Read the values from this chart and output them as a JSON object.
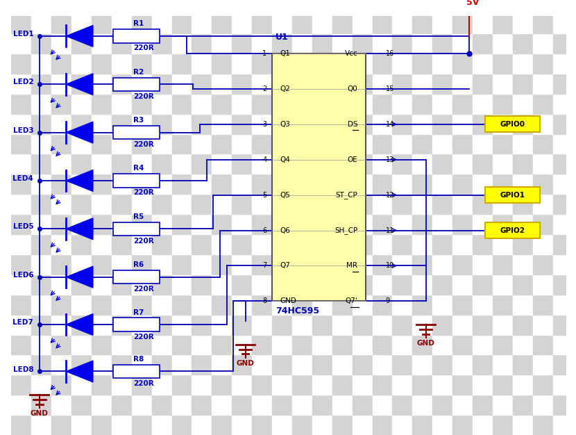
{
  "bg_color1": "#d4d4d4",
  "bg_color2": "#ffffff",
  "wire_color": "#0000bb",
  "wire_lw": 1.3,
  "led_color": "#0000ee",
  "res_color": "#0000bb",
  "chip_fill": "#ffffaa",
  "chip_border": "#555555",
  "label_blue": "#0000bb",
  "gnd_color": "#880000",
  "v5_color": "#cc0000",
  "gpio_bg": "#ffff00",
  "gpio_border": "#ccaa00",
  "leds": [
    "LED1",
    "LED2",
    "LED3",
    "LED4",
    "LED5",
    "LED6",
    "LED7",
    "LED8"
  ],
  "resistors": [
    "R1",
    "R2",
    "R3",
    "R4",
    "R5",
    "R6",
    "R7",
    "R8"
  ],
  "chip_labels_left": [
    "Q1",
    "Q2",
    "Q3",
    "Q4",
    "Q5",
    "Q6",
    "Q7",
    "GND"
  ],
  "chip_labels_right": [
    "Vcc",
    "Q0",
    "DS",
    "OE",
    "ST_CP",
    "SH_CP",
    "MR",
    "Q7'"
  ],
  "chip_underline_right": [
    false,
    false,
    true,
    false,
    false,
    false,
    true,
    true
  ],
  "chip_name": "74HC595",
  "chip_ref": "U1",
  "gpios": [
    "GPIO0",
    "GPIO1",
    "GPIO2"
  ]
}
